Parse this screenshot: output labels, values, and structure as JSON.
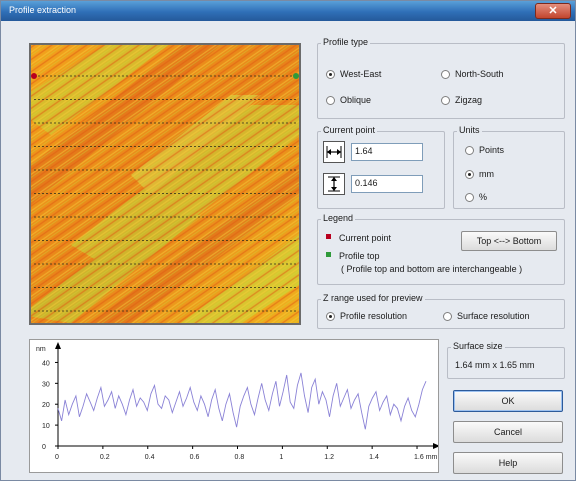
{
  "window": {
    "title": "Profile extraction"
  },
  "profile_type": {
    "title": "Profile type",
    "options": [
      {
        "label": "West-East",
        "selected": true
      },
      {
        "label": "North-South",
        "selected": false
      },
      {
        "label": "Oblique",
        "selected": false
      },
      {
        "label": "Zigzag",
        "selected": false
      }
    ]
  },
  "current_point": {
    "title": "Current point",
    "x_value": "1.64",
    "y_value": "0.146"
  },
  "units": {
    "title": "Units",
    "options": [
      {
        "label": "Points",
        "selected": false
      },
      {
        "label": "mm",
        "selected": true
      },
      {
        "label": "%",
        "selected": false
      }
    ]
  },
  "legend": {
    "title": "Legend",
    "current_point_label": "Current point",
    "profile_top_label": "Profile top",
    "note": "( Profile top and bottom are interchangeable )",
    "swap_button": "Top <--> Bottom",
    "current_point_color": "#b8001f",
    "profile_top_color": "#2f9a3a"
  },
  "z_range": {
    "title": "Z range used for preview",
    "options": [
      {
        "label": "Profile resolution",
        "selected": true
      },
      {
        "label": "Surface resolution",
        "selected": false
      }
    ]
  },
  "surface_size": {
    "title": "Surface size",
    "value": "1.64 mm x 1.65 mm"
  },
  "buttons": {
    "ok": "OK",
    "cancel": "Cancel",
    "help": "Help"
  },
  "chart_data": {
    "type": "line",
    "ylabel": "nm",
    "xunit": "mm",
    "xlim": [
      0,
      1.64
    ],
    "ylim": [
      0,
      45
    ],
    "x_ticks": [
      "0",
      "0.2",
      "0.4",
      "0.6",
      "0.8",
      "1",
      "1.2",
      "1.4",
      "1.6 mm"
    ],
    "y_ticks": [
      "0",
      "10",
      "20",
      "30",
      "40"
    ],
    "series": [
      {
        "color": "#8a82d6",
        "values": [
          18,
          12,
          22,
          15,
          20,
          24,
          14,
          19,
          25,
          21,
          17,
          23,
          28,
          19,
          22,
          26,
          18,
          24,
          20,
          15,
          22,
          27,
          19,
          23,
          21,
          17,
          25,
          29,
          20,
          18,
          24,
          22,
          16,
          21,
          26,
          19,
          23,
          28,
          21,
          17,
          24,
          20,
          14,
          22,
          27,
          18,
          12,
          20,
          25,
          16,
          9,
          19,
          24,
          28,
          20,
          15,
          23,
          30,
          22,
          17,
          25,
          31,
          19,
          26,
          34,
          21,
          18,
          29,
          35,
          24,
          16,
          28,
          32,
          20,
          26,
          22,
          14,
          24,
          30,
          19,
          23,
          27,
          18,
          22,
          25,
          16,
          8,
          19,
          23,
          26,
          17,
          21,
          24,
          15,
          20,
          18,
          12,
          19,
          23,
          17,
          14,
          20,
          27,
          31
        ]
      }
    ]
  }
}
